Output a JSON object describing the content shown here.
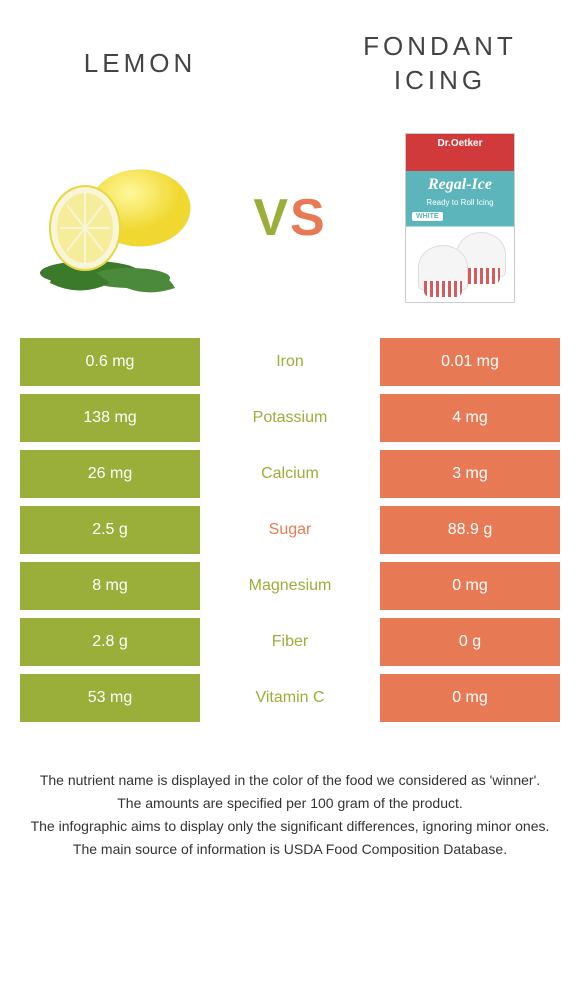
{
  "header": {
    "left_title": "Lemon",
    "right_title": "Fondant Icing",
    "vs_v": "V",
    "vs_s": "S"
  },
  "colors": {
    "green": "#9aae3a",
    "orange": "#e77a54",
    "text": "#333333",
    "background": "#ffffff"
  },
  "fondant": {
    "brand": "Dr.Oetker",
    "title": "Regal-Ice",
    "subtitle": "Ready to Roll Icing",
    "tag": "WHITE"
  },
  "rows": [
    {
      "left": "0.6 mg",
      "label": "Iron",
      "right": "0.01 mg",
      "winner": "green"
    },
    {
      "left": "138 mg",
      "label": "Potassium",
      "right": "4 mg",
      "winner": "green"
    },
    {
      "left": "26 mg",
      "label": "Calcium",
      "right": "3 mg",
      "winner": "green"
    },
    {
      "left": "2.5 g",
      "label": "Sugar",
      "right": "88.9 g",
      "winner": "orange"
    },
    {
      "left": "8 mg",
      "label": "Magnesium",
      "right": "0 mg",
      "winner": "green"
    },
    {
      "left": "2.8 g",
      "label": "Fiber",
      "right": "0 g",
      "winner": "green"
    },
    {
      "left": "53 mg",
      "label": "Vitamin C",
      "right": "0 mg",
      "winner": "green"
    }
  ],
  "footer": {
    "l1": "The nutrient name is displayed in the color of the food we considered as 'winner'.",
    "l2": "The amounts are specified per 100 gram of the product.",
    "l3": "The infographic aims to display only the significant differences, ignoring minor ones.",
    "l4": "The main source of information is USDA Food Composition Database."
  }
}
